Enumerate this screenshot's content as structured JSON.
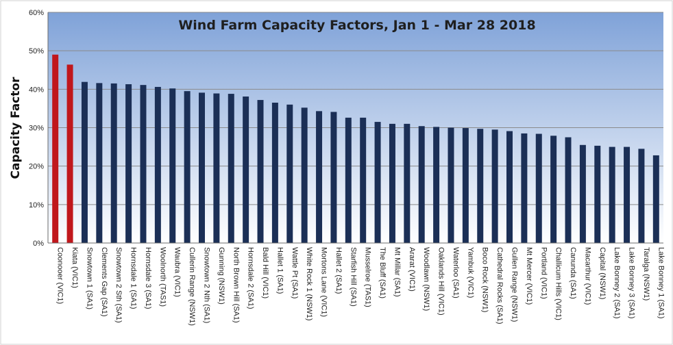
{
  "chart_data": {
    "type": "bar",
    "title": "Wind Farm Capacity Factors, Jan 1 - Mar 28 2018",
    "xlabel": "",
    "ylabel": "Capacity Factor",
    "ylim": [
      0,
      60
    ],
    "yticks": [
      "0%",
      "10%",
      "20%",
      "30%",
      "40%",
      "50%",
      "60%"
    ],
    "grid": true,
    "legend": "none",
    "colors": {
      "default": "#1b2f56",
      "highlight": "#c0171c",
      "plot_top": "#7fa2d8",
      "plot_bottom": "#ffffff",
      "grid": "#8a8a8a"
    },
    "categories": [
      "Coonooer (VIC1)",
      "Kiata (VIC1)",
      "Snowtown 1 (SA1)",
      "Clements Gap (SA1)",
      "Snowtown 2 Sth (SA1)",
      "Hornsdale 1 (SA1)",
      "Hornsdale 3 (SA1)",
      "Woolnorth (TAS1)",
      "Waubra (VIC1)",
      "Cullerin Range (NSW1)",
      "Snowtown 2 Nth (SA1)",
      "Gunning (NSW1)",
      "North Brown Hill (SA1)",
      "Hornsdale 2 (SA1)",
      "Bald Hill (VIC1)",
      "Hallet 1 (SA1)",
      "Wattle Pt (SA1)",
      "White Rock 1 (NSW1)",
      "Mortons Lane (VIC1)",
      "Hallet 2 (SA1)",
      "Starfish Hill (SA1)",
      "Musselroe (TAS1)",
      "The Bluff (SA1)",
      "Mt Millar (SA1)",
      "Ararat (VIC1)",
      "Woodlawn (NSW1)",
      "Oaklands Hill (VIC1)",
      "Waterloo (SA1)",
      "Yambuk (VIC1)",
      "Boco Rock (NSW1)",
      "Cathedral Rocks (SA1)",
      "Gullen Range (NSW1)",
      "Mt Mercer (VIC1)",
      "Portland (VIC1)",
      "Challicum Hills (VIC1)",
      "Canunda (SA1)",
      "Macarthur (VIC1)",
      "Capital (NSW1)",
      "Lake Bonney 2 (SA1)",
      "Lake Bonney 3 (SA1)",
      "Taralga (NSW1)",
      "Lake Bonney 1 (SA1)"
    ],
    "values": [
      49.0,
      46.4,
      41.9,
      41.6,
      41.5,
      41.3,
      41.1,
      40.6,
      40.2,
      39.5,
      39.1,
      38.9,
      38.8,
      38.1,
      37.2,
      36.5,
      36.0,
      35.2,
      34.3,
      34.1,
      32.6,
      32.6,
      31.5,
      31.0,
      31.0,
      30.4,
      30.2,
      30.0,
      29.9,
      29.7,
      29.5,
      29.1,
      28.5,
      28.4,
      27.9,
      27.5,
      25.5,
      25.3,
      25.0,
      25.0,
      24.5,
      22.8
    ],
    "highlighted": [
      0,
      1
    ]
  }
}
